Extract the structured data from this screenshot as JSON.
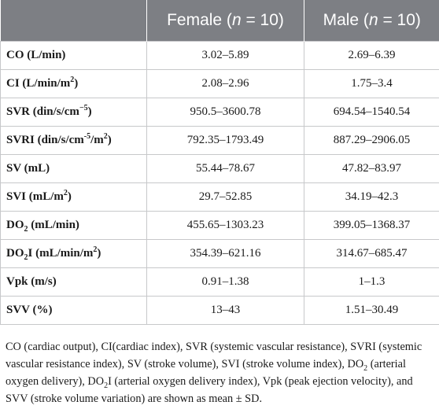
{
  "table": {
    "header": {
      "female_label": "Female (",
      "female_n": "n",
      "female_count": " = 10)",
      "male_label": "Male (",
      "male_n": "n",
      "male_count": " = 10)"
    },
    "rows": [
      {
        "main": "CO (L/min)",
        "sup": "",
        "tail": "",
        "female": "3.02–5.89",
        "male": "2.69–6.39"
      },
      {
        "main": "CI (L/min/m",
        "sup": "2",
        "tail": ")",
        "female": "2.08–2.96",
        "male": "1.75–3.4"
      },
      {
        "main": "SVR (din/s/cm",
        "sup": "−5",
        "tail": ")",
        "female": "950.5–3600.78",
        "male": "694.54–1540.54"
      },
      {
        "main": "SVRI (din/s/cm",
        "sup": "-5",
        "tail": "/m",
        "sup2": "2",
        "tail2": ")",
        "female": "792.35–1793.49",
        "male": "887.29–2906.05"
      },
      {
        "main": "SV (mL)",
        "sup": "",
        "tail": "",
        "female": "55.44–78.67",
        "male": "47.82–83.97"
      },
      {
        "main": "SVI (mL/m",
        "sup": "2",
        "tail": ")",
        "female": "29.7–52.85",
        "male": "34.19–42.3"
      },
      {
        "main": "DO",
        "sub": "2",
        "tail": " (mL/min)",
        "female": "455.65–1303.23",
        "male": "399.05–1368.37"
      },
      {
        "main": "DO",
        "sub": "2",
        "tail": "I (mL/min/m",
        "sup2": "2",
        "tail2": ")",
        "female": "354.39–621.16",
        "male": "314.67–685.47"
      },
      {
        "main": "Vpk (m/s)",
        "sup": "",
        "tail": "",
        "female": "0.91–1.38",
        "male": "1–1.3"
      },
      {
        "main": "SVV (%)",
        "sup": "",
        "tail": "",
        "female": "13–43",
        "male": "1.51–30.49"
      }
    ]
  },
  "caption": {
    "part1": "CO (cardiac output), CI(cardiac index), SVR (systemic vascular resistance), SVRI (systemic vascular resistance index), SV (stroke volume), SVI (stroke volume index), DO",
    "sub1": "2",
    "part2": " (arterial oxygen delivery), DO",
    "sub2": "2",
    "part3": "I (arterial oxygen delivery index), Vpk (peak ejection velocity), and SVV (stroke volume variation) are shown as mean ± SD."
  }
}
